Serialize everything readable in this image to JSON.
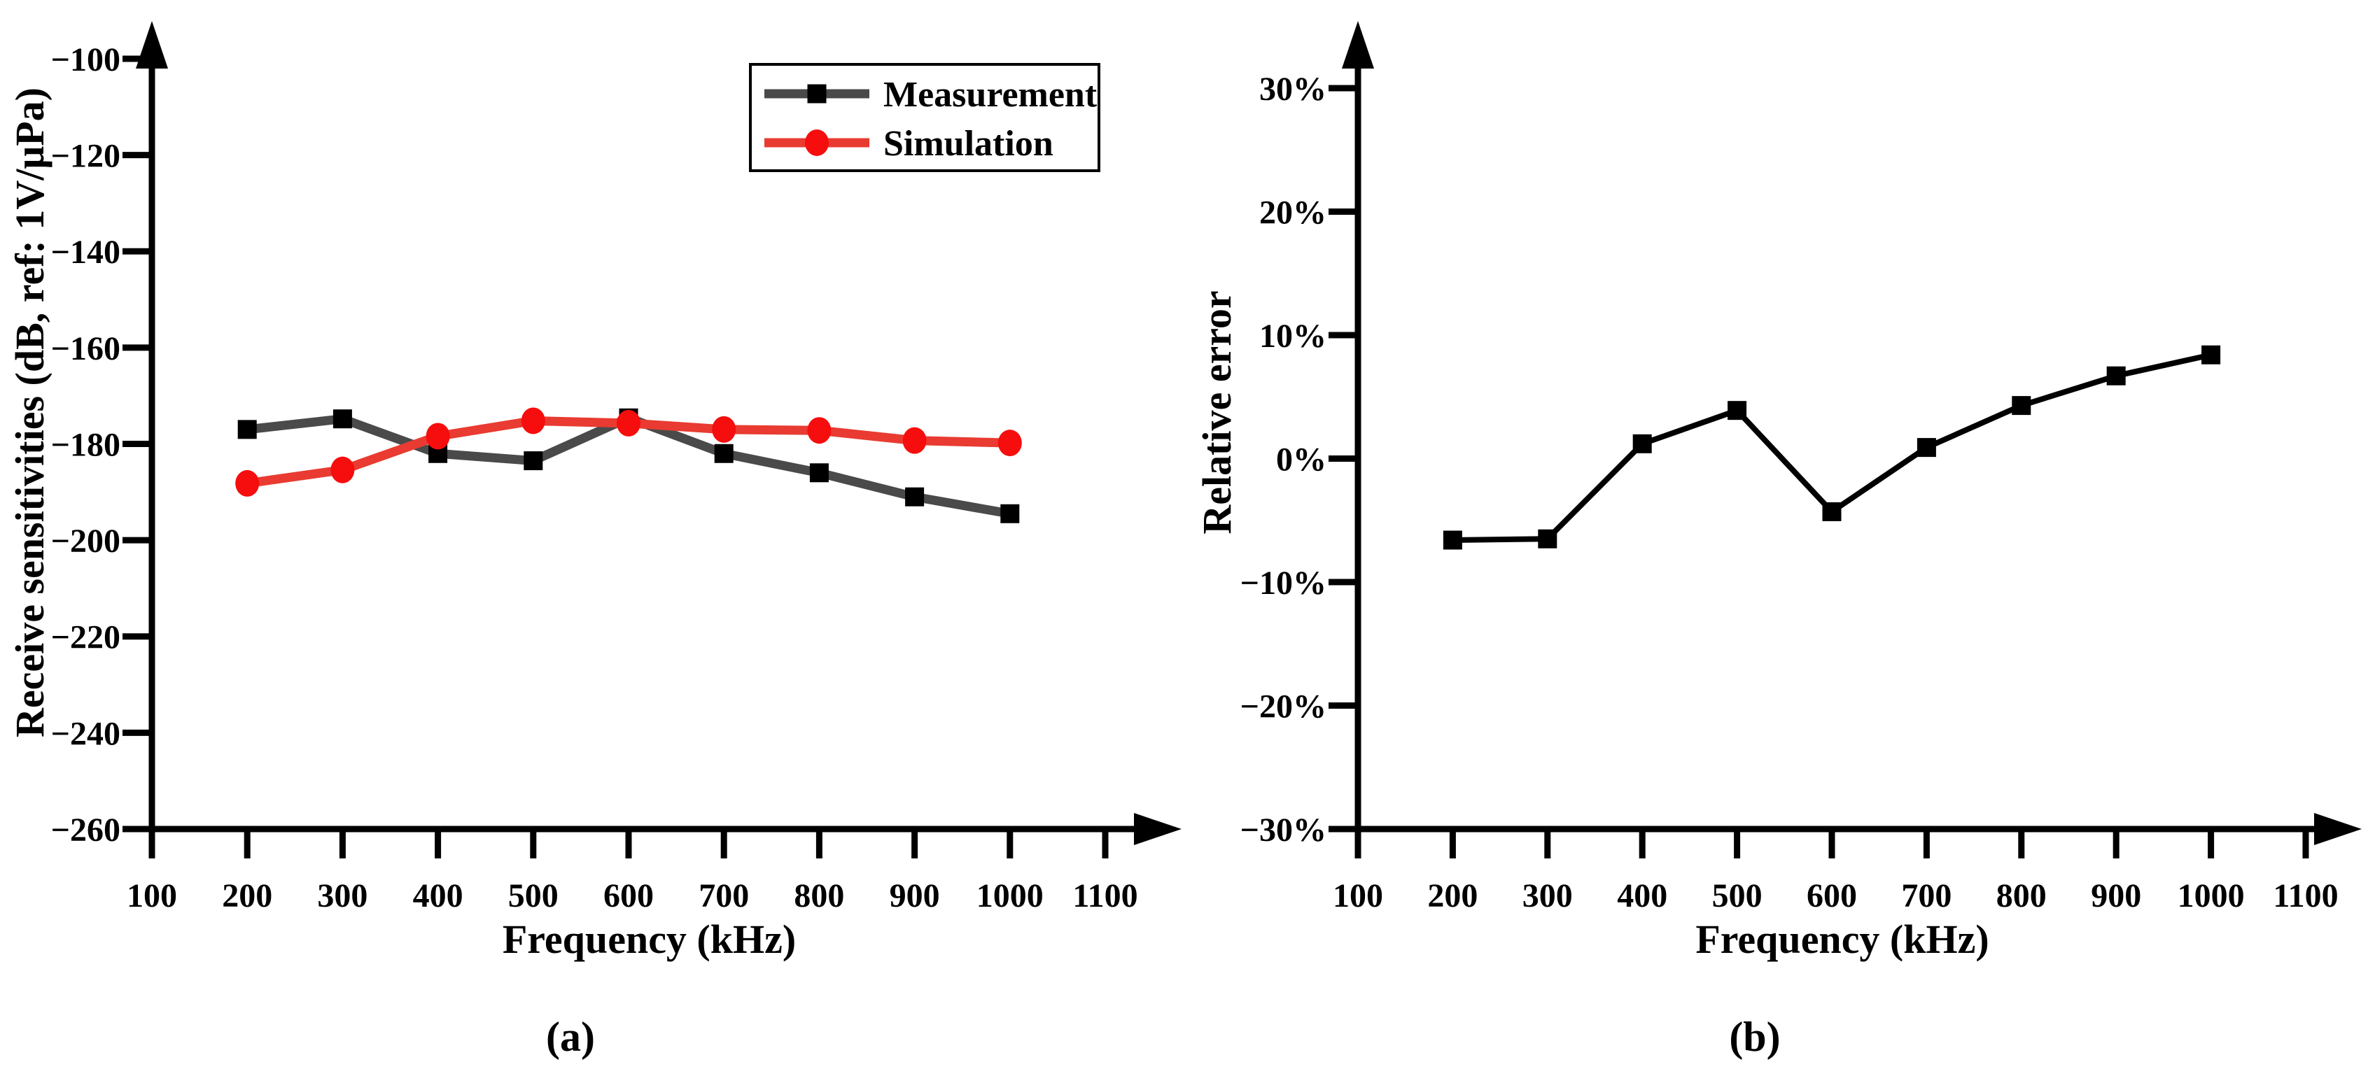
{
  "figure": {
    "background": "#ffffff",
    "caption_a": "(a)",
    "caption_b": "(b)"
  },
  "chart_data": [
    {
      "id": "a",
      "type": "line",
      "title": "",
      "xlabel": "Frequency (kHz)",
      "ylabel": "Receive sensitivities (dB, ref: 1V/μPa)",
      "xlim": [
        100,
        1100
      ],
      "ylim": [
        -260,
        -100
      ],
      "x_ticks": [
        100,
        200,
        300,
        400,
        500,
        600,
        700,
        800,
        900,
        1000,
        1100
      ],
      "y_ticks": [
        -100,
        -120,
        -140,
        -160,
        -180,
        -200,
        -220,
        -240,
        -260
      ],
      "y_tick_labels": [
        "−100",
        "−120",
        "−140",
        "−160",
        "−180",
        "−200",
        "−220",
        "−240",
        "−260"
      ],
      "grid": false,
      "legend_position": "top-right",
      "x": [
        200,
        300,
        400,
        500,
        600,
        700,
        800,
        900,
        1000
      ],
      "series": [
        {
          "name": "Measurement",
          "marker": "square",
          "line_color": "#4a4a4a",
          "marker_color": "#000000",
          "values": [
            -177.0,
            -174.8,
            -182.0,
            -183.5,
            -174.6,
            -182.0,
            -186.0,
            -191.0,
            -194.5
          ]
        },
        {
          "name": "Simulation",
          "marker": "circle",
          "line_color": "#e93b31",
          "marker_color": "#f60d0d",
          "values": [
            -188.2,
            -185.4,
            -178.4,
            -175.2,
            -175.7,
            -177.0,
            -177.2,
            -179.3,
            -179.8
          ]
        }
      ]
    },
    {
      "id": "b",
      "type": "line",
      "title": "",
      "xlabel": "Frequency (kHz)",
      "ylabel": "Relative error",
      "xlim": [
        100,
        1100
      ],
      "ylim": [
        -30,
        30
      ],
      "x_ticks": [
        100,
        200,
        300,
        400,
        500,
        600,
        700,
        800,
        900,
        1000,
        1100
      ],
      "y_ticks": [
        30,
        20,
        10,
        0,
        -10,
        -20,
        -30
      ],
      "y_tick_labels": [
        "30%",
        "20%",
        "10%",
        "0%",
        "−10%",
        "−20%",
        "−30%"
      ],
      "grid": false,
      "legend_position": "none",
      "x": [
        200,
        300,
        400,
        500,
        600,
        700,
        800,
        900,
        1000
      ],
      "series": [
        {
          "name": "Relative error",
          "marker": "square",
          "line_color": "#000000",
          "marker_color": "#000000",
          "values": [
            -6.6,
            -6.5,
            1.2,
            3.9,
            -4.3,
            0.9,
            4.3,
            6.7,
            8.4
          ]
        }
      ]
    }
  ]
}
